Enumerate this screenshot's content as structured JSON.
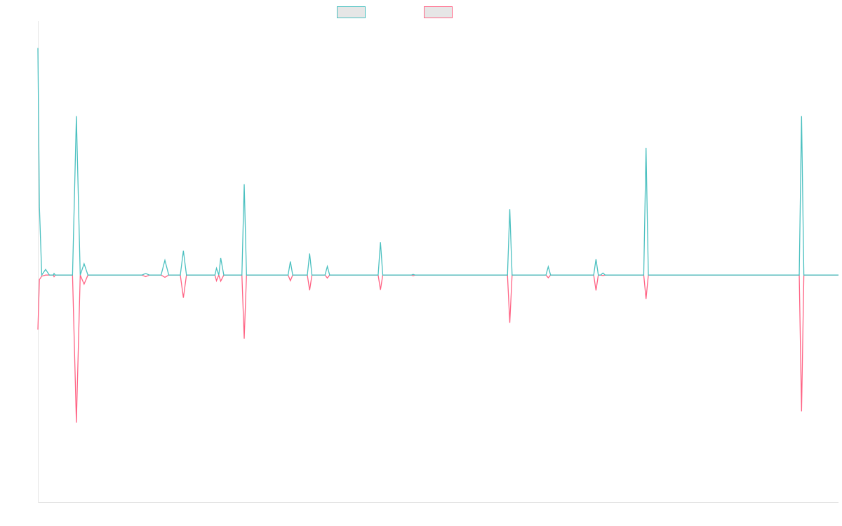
{
  "colors": {
    "series_1": "#4bc0c0",
    "series_2": "#ff6384",
    "axis": "#e5e5e5",
    "legend_fill": "#e6e6e6"
  },
  "chart_data": {
    "type": "line",
    "title": "",
    "xlabel": "",
    "ylabel": "",
    "legend": {
      "position": "top",
      "labels_visible": false
    },
    "grid": false,
    "x_range": [
      0,
      208
    ],
    "ylim": [
      -100,
      110
    ],
    "series": [
      {
        "color": "#4bc0c0",
        "points": [
          [
            0,
            100
          ],
          [
            0.4,
            30
          ],
          [
            1,
            0
          ],
          [
            2,
            2.5
          ],
          [
            3,
            0
          ],
          [
            4,
            0
          ],
          [
            4.2,
            0.7
          ],
          [
            4.5,
            0
          ],
          [
            9,
            0
          ],
          [
            10,
            70
          ],
          [
            11,
            0
          ],
          [
            12,
            5
          ],
          [
            13,
            0
          ],
          [
            27,
            0
          ],
          [
            28,
            0.7
          ],
          [
            29,
            0
          ],
          [
            32,
            0
          ],
          [
            33,
            6.5
          ],
          [
            34,
            0
          ],
          [
            37,
            0
          ],
          [
            37.8,
            10.7
          ],
          [
            38.6,
            0
          ],
          [
            46,
            0
          ],
          [
            46.4,
            3
          ],
          [
            47,
            0
          ],
          [
            47.5,
            7.5
          ],
          [
            48.3,
            0
          ],
          [
            53,
            0
          ],
          [
            53.6,
            40
          ],
          [
            54.2,
            0
          ],
          [
            65,
            0
          ],
          [
            65.6,
            6
          ],
          [
            66.2,
            0
          ],
          [
            70,
            0
          ],
          [
            70.6,
            9.5
          ],
          [
            71.2,
            0
          ],
          [
            74.6,
            0
          ],
          [
            75.2,
            3.8
          ],
          [
            75.8,
            0
          ],
          [
            88.4,
            0
          ],
          [
            89,
            14.5
          ],
          [
            89.6,
            0
          ],
          [
            97,
            0
          ],
          [
            97.5,
            0.3
          ],
          [
            98,
            0
          ],
          [
            122,
            0
          ],
          [
            122.6,
            29
          ],
          [
            123.2,
            0
          ],
          [
            132,
            0
          ],
          [
            132.6,
            3.7
          ],
          [
            133.2,
            0
          ],
          [
            144.4,
            0
          ],
          [
            145,
            7
          ],
          [
            145.6,
            0
          ],
          [
            146.2,
            0
          ],
          [
            146.8,
            0.9
          ],
          [
            147.4,
            0
          ],
          [
            157.4,
            0
          ],
          [
            158,
            56
          ],
          [
            158.6,
            0
          ],
          [
            197.8,
            0
          ],
          [
            198.4,
            70
          ],
          [
            199,
            0
          ],
          [
            208,
            0
          ]
        ]
      },
      {
        "color": "#ff6384",
        "points": [
          [
            0,
            -24
          ],
          [
            0.4,
            -2
          ],
          [
            1,
            -0.5
          ],
          [
            2,
            0
          ],
          [
            3,
            0
          ],
          [
            4,
            0
          ],
          [
            4.2,
            -0.7
          ],
          [
            4.5,
            0
          ],
          [
            9,
            0
          ],
          [
            10,
            -65
          ],
          [
            11,
            0
          ],
          [
            12,
            -4
          ],
          [
            13,
            0
          ],
          [
            27,
            0
          ],
          [
            28,
            -0.7
          ],
          [
            29,
            0
          ],
          [
            32,
            0
          ],
          [
            33,
            -1
          ],
          [
            34,
            0
          ],
          [
            37,
            0
          ],
          [
            37.8,
            -10
          ],
          [
            38.6,
            0
          ],
          [
            46,
            0
          ],
          [
            46.4,
            -2.5
          ],
          [
            47,
            0
          ],
          [
            47.5,
            -2.7
          ],
          [
            48.3,
            0
          ],
          [
            53,
            0
          ],
          [
            53.6,
            -28
          ],
          [
            54.2,
            0
          ],
          [
            65,
            0
          ],
          [
            65.6,
            -2.5
          ],
          [
            66.2,
            0
          ],
          [
            70,
            0
          ],
          [
            70.6,
            -6.7
          ],
          [
            71.2,
            0
          ],
          [
            74.6,
            0
          ],
          [
            75.2,
            -1.3
          ],
          [
            75.8,
            0
          ],
          [
            88.4,
            0
          ],
          [
            89,
            -6.5
          ],
          [
            89.6,
            0
          ],
          [
            97,
            0
          ],
          [
            97.5,
            -0.3
          ],
          [
            98,
            0
          ],
          [
            122,
            0
          ],
          [
            122.6,
            -21
          ],
          [
            123.2,
            0
          ],
          [
            132,
            0
          ],
          [
            132.6,
            -1.2
          ],
          [
            133.2,
            0
          ],
          [
            144.4,
            0
          ],
          [
            145,
            -6.8
          ],
          [
            145.6,
            0
          ],
          [
            146.2,
            0
          ],
          [
            146.8,
            -0.2
          ],
          [
            147.4,
            0
          ],
          [
            157.4,
            0
          ],
          [
            158,
            -10.5
          ],
          [
            158.6,
            0
          ],
          [
            197.8,
            0
          ],
          [
            198.4,
            -60
          ],
          [
            199,
            0
          ],
          [
            208,
            0
          ]
        ]
      }
    ]
  }
}
